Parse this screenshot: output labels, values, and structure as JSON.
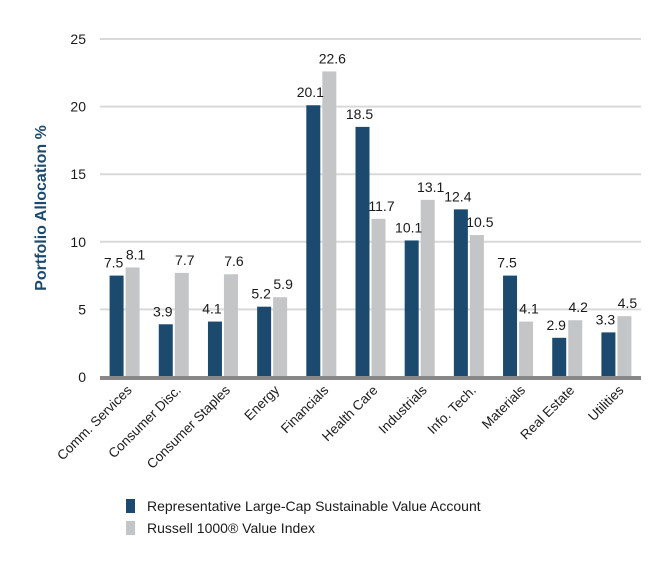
{
  "chart_data": {
    "type": "bar",
    "title": "",
    "xlabel": "",
    "ylabel": "Portfolio Allocation %",
    "ylim": [
      0,
      25
    ],
    "yticks": [
      0,
      5,
      10,
      15,
      20,
      25
    ],
    "grid": true,
    "legend_position": "bottom",
    "categories": [
      "Comm. Services",
      "Consumer Disc.",
      "Consumer Staples",
      "Energy",
      "Financials",
      "Health Care",
      "Industrials",
      "Info. Tech.",
      "Materials",
      "Real Estate",
      "Utilities"
    ],
    "series": [
      {
        "name": "Representative Large-Cap Sustainable Value Account",
        "color": "#1c4a6e",
        "values": [
          7.5,
          3.9,
          4.1,
          5.2,
          20.1,
          18.5,
          10.1,
          12.4,
          7.5,
          2.9,
          3.3
        ]
      },
      {
        "name": "Russell 1000® Value Index",
        "color": "#c4c5c7",
        "values": [
          8.1,
          7.7,
          7.6,
          5.9,
          22.6,
          11.7,
          13.1,
          10.5,
          4.1,
          4.2,
          4.5
        ]
      }
    ],
    "colors": {
      "gridline": "#d9d9d9",
      "axis": "#888888",
      "ylabel": "#1c4a6e"
    }
  }
}
